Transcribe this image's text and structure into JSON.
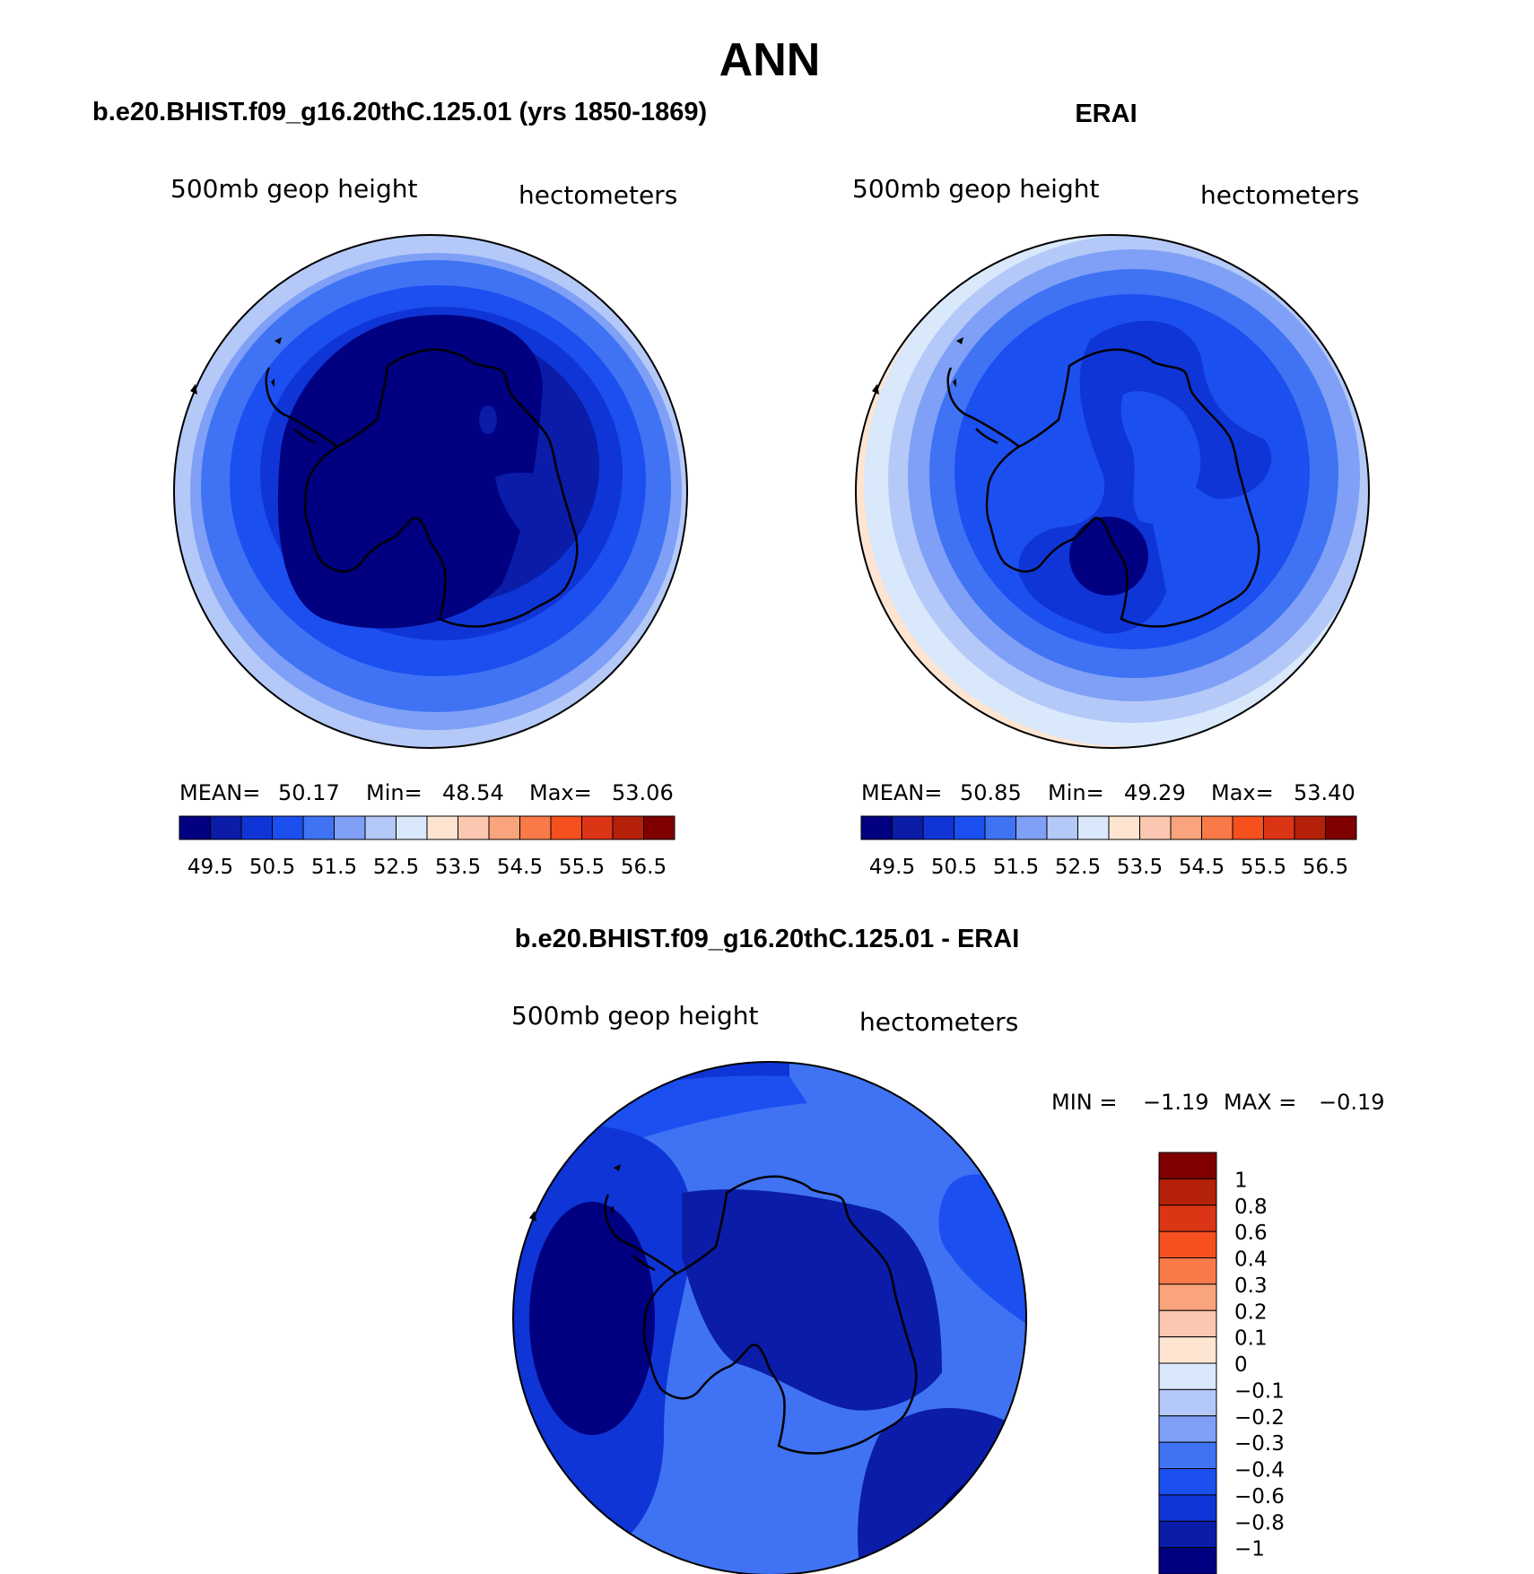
{
  "figure": {
    "title": "ANN"
  },
  "colors": {
    "abs_scale": [
      "#000080",
      "#0a1ca8",
      "#0f35d6",
      "#1c4ff0",
      "#3f73f4",
      "#7fa0f6",
      "#b4c9f8",
      "#d9e8fb",
      "#fde5d2",
      "#fbc7b0",
      "#f9a47c",
      "#f97a48",
      "#f5501e",
      "#dc3515",
      "#b52108",
      "#800000"
    ],
    "diff_scale": [
      "#000080",
      "#0a1ca8",
      "#0f35d6",
      "#1c4ff0",
      "#3f73f4",
      "#7fa0f6",
      "#b4c9f8",
      "#d9e8fb",
      "#fde5d2",
      "#fbc7b0",
      "#f9a47c",
      "#f97a48",
      "#f5501e",
      "#dc3515",
      "#b52108",
      "#800000"
    ],
    "coast": "#000000"
  },
  "chart_data": [
    {
      "type": "heatmap",
      "panel": "model",
      "title": "b.e20.BHIST.f09_g16.20thC.125.01 (yrs 1850-1869)",
      "left_label": "500mb geop height",
      "right_label": "hectometers",
      "stats": {
        "mean_label": "MEAN=",
        "mean": "50.17",
        "min_label": "Min=",
        "min": "48.54",
        "max_label": "Max=",
        "max": "53.06"
      },
      "colorbar_ticks": [
        "49.5",
        "50.5",
        "51.5",
        "52.5",
        "53.5",
        "54.5",
        "55.5",
        "56.5"
      ],
      "levels": [
        49,
        49.5,
        50,
        50.5,
        51,
        51.5,
        52,
        52.5,
        53,
        53.5,
        54,
        54.5,
        55,
        55.5,
        56,
        56.5
      ],
      "field": {
        "min": 48.54,
        "max": 53.06,
        "ring_levels": [
          53.0,
          52.5,
          52.0,
          51.5,
          51.0,
          50.5,
          50.0,
          49.5,
          49.0
        ]
      }
    },
    {
      "type": "heatmap",
      "panel": "obs",
      "title": "ERAI",
      "left_label": "500mb geop height",
      "right_label": "hectometers",
      "stats": {
        "mean_label": "MEAN=",
        "mean": "50.85",
        "min_label": "Min=",
        "min": "49.29",
        "max_label": "Max=",
        "max": "53.40"
      },
      "colorbar_ticks": [
        "49.5",
        "50.5",
        "51.5",
        "52.5",
        "53.5",
        "54.5",
        "55.5",
        "56.5"
      ],
      "levels": [
        49,
        49.5,
        50,
        50.5,
        51,
        51.5,
        52,
        52.5,
        53,
        53.5,
        54,
        54.5,
        55,
        55.5,
        56,
        56.5
      ],
      "field": {
        "min": 49.29,
        "max": 53.4,
        "ring_levels": [
          53.0,
          52.5,
          52.0,
          51.5,
          51.0,
          50.5,
          50.0
        ]
      }
    },
    {
      "type": "heatmap",
      "panel": "difference",
      "title": "b.e20.BHIST.f09_g16.20thC.125.01 - ERAI",
      "left_label": "500mb geop height",
      "right_label": "hectometers",
      "stats": {
        "min_label": "MIN =",
        "min": "−1.19",
        "max_label": "MAX =",
        "max": "−0.19"
      },
      "colorbar_ticks": [
        "1",
        "0.8",
        "0.6",
        "0.4",
        "0.3",
        "0.2",
        "0.1",
        "0",
        "−0.1",
        "−0.2",
        "−0.3",
        "−0.4",
        "−0.6",
        "−0.8",
        "−1"
      ],
      "levels": [
        -1,
        -0.8,
        -0.6,
        -0.4,
        -0.3,
        -0.2,
        -0.1,
        0,
        0.1,
        0.2,
        0.3,
        0.4,
        0.6,
        0.8,
        1
      ],
      "field": {
        "min": -1.19,
        "max": -0.19
      }
    }
  ]
}
